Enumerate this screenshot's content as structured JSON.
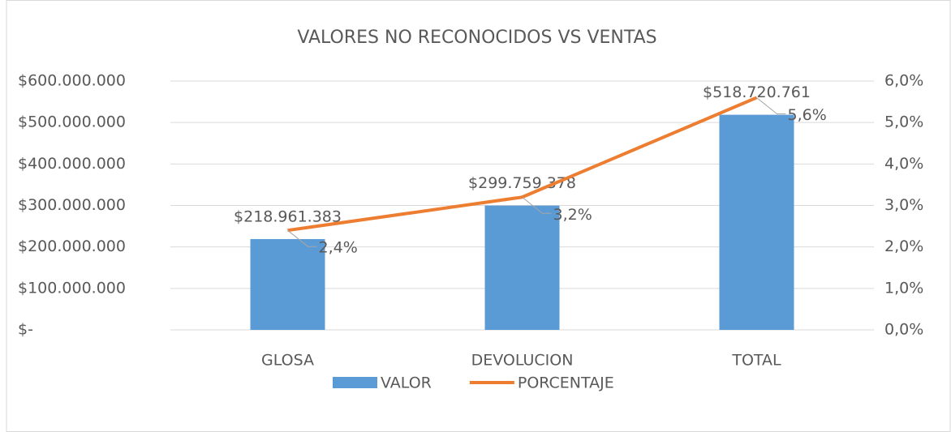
{
  "chart_data": {
    "type": "bar-line",
    "title": "VALORES NO RECONOCIDOS VS VENTAS",
    "categories": [
      "GLOSA",
      "DEVOLUCION",
      "TOTAL"
    ],
    "series": [
      {
        "name": "VALOR",
        "type": "bar",
        "color": "#5b9bd5",
        "values": [
          218961383,
          299759378,
          518720761
        ],
        "value_labels": [
          "$218.961.383",
          "$299.759.378",
          "$518.720.761"
        ]
      },
      {
        "name": "PORCENTAJE",
        "type": "line",
        "axis": "y2",
        "color": "#ed7d31",
        "values": [
          2.4,
          3.2,
          5.6
        ],
        "value_labels": [
          "2,4%",
          "3,2%",
          "5,6%"
        ]
      }
    ],
    "ylim": [
      0,
      600000000
    ],
    "yticks": [
      {
        "value": 0,
        "label": "$-"
      },
      {
        "value": 100000000,
        "label": "$100.000.000"
      },
      {
        "value": 200000000,
        "label": "$200.000.000"
      },
      {
        "value": 300000000,
        "label": "$300.000.000"
      },
      {
        "value": 400000000,
        "label": "$400.000.000"
      },
      {
        "value": 500000000,
        "label": "$500.000.000"
      },
      {
        "value": 600000000,
        "label": "$600.000.000"
      }
    ],
    "y2lim": [
      0,
      6
    ],
    "y2ticks": [
      {
        "value": 0,
        "label": "0,0%"
      },
      {
        "value": 1,
        "label": "1,0%"
      },
      {
        "value": 2,
        "label": "2,0%"
      },
      {
        "value": 3,
        "label": "3,0%"
      },
      {
        "value": 4,
        "label": "4,0%"
      },
      {
        "value": 5,
        "label": "5,0%"
      },
      {
        "value": 6,
        "label": "6,0%"
      }
    ],
    "grid": true,
    "legend": "bottom"
  }
}
